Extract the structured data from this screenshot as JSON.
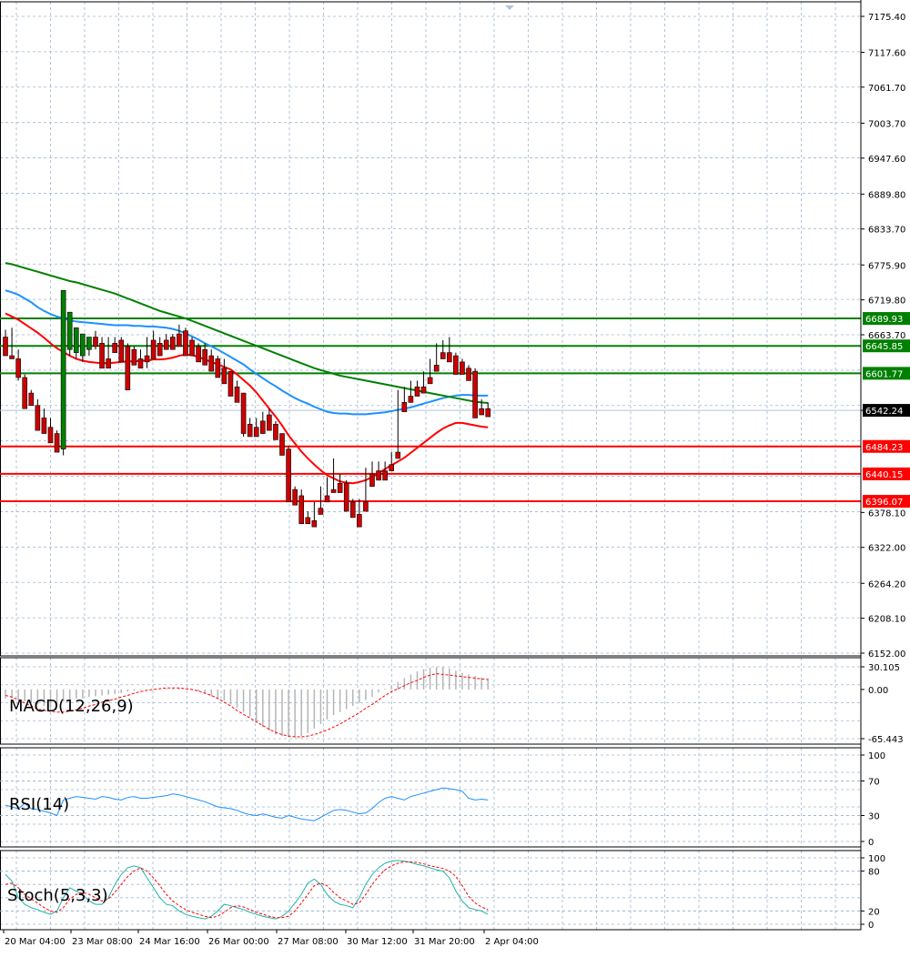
{
  "chart_data": [
    {
      "type": "candlestick",
      "panel": "price",
      "y_ticks": [
        "7175.40",
        "7117.60",
        "7061.70",
        "7003.70",
        "6947.60",
        "6889.80",
        "6833.70",
        "6775.90",
        "6719.80",
        "6663.70",
        "6542.24",
        "6378.10",
        "6322.00",
        "6264.20",
        "6208.10",
        "6152.00"
      ],
      "ylim": [
        6152.0,
        7175.4
      ],
      "grid": true,
      "current_price": "6542.24",
      "horizontal_levels": [
        {
          "value": 6689.93,
          "label": "6689.93",
          "color": "#008000"
        },
        {
          "value": 6645.85,
          "label": "6645.85",
          "color": "#008000"
        },
        {
          "value": 6601.77,
          "label": "6601.77",
          "color": "#008000"
        },
        {
          "value": 6484.23,
          "label": "6484.23",
          "color": "#ff0000"
        },
        {
          "value": 6440.15,
          "label": "6440.15",
          "color": "#ff0000"
        },
        {
          "value": 6396.07,
          "label": "6396.07",
          "color": "#ff0000"
        }
      ],
      "candles": [
        [
          6660,
          6672,
          6648,
          6630
        ],
        [
          6630,
          6675,
          6625,
          6625
        ],
        [
          6625,
          6640,
          6590,
          6595
        ],
        [
          6595,
          6600,
          6560,
          6545
        ],
        [
          6570,
          6575,
          6555,
          6550
        ],
        [
          6550,
          6560,
          6525,
          6510
        ],
        [
          6530,
          6545,
          6510,
          6505
        ],
        [
          6515,
          6530,
          6495,
          6490
        ],
        [
          6505,
          6510,
          6480,
          6475
        ],
        [
          6480,
          6640,
          6470,
          6735
        ],
        [
          6640,
          6650,
          6630,
          6700
        ],
        [
          6635,
          6645,
          6625,
          6675
        ],
        [
          6630,
          6650,
          6620,
          6665
        ],
        [
          6640,
          6660,
          6630,
          6660
        ],
        [
          6660,
          6670,
          6640,
          6645
        ],
        [
          6650,
          6660,
          6620,
          6610
        ],
        [
          6625,
          6660,
          6620,
          6610
        ],
        [
          6650,
          6660,
          6640,
          6635
        ],
        [
          6655,
          6660,
          6630,
          6620
        ],
        [
          6645,
          6650,
          6640,
          6575
        ],
        [
          6640,
          6645,
          6620,
          6615
        ],
        [
          6625,
          6640,
          6615,
          6610
        ],
        [
          6630,
          6660,
          6610,
          6620
        ],
        [
          6655,
          6670,
          6640,
          6625
        ],
        [
          6650,
          6660,
          6645,
          6630
        ],
        [
          6655,
          6665,
          6640,
          6640
        ],
        [
          6660,
          6665,
          6650,
          6640
        ],
        [
          6665,
          6680,
          6655,
          6645
        ],
        [
          6670,
          6675,
          6650,
          6630
        ],
        [
          6655,
          6660,
          6640,
          6630
        ],
        [
          6645,
          6650,
          6640,
          6620
        ],
        [
          6640,
          6650,
          6625,
          6615
        ],
        [
          6630,
          6640,
          6620,
          6605
        ],
        [
          6625,
          6630,
          6605,
          6595
        ],
        [
          6610,
          6625,
          6600,
          6585
        ],
        [
          6605,
          6600,
          6575,
          6565
        ],
        [
          6580,
          6590,
          6565,
          6555
        ],
        [
          6570,
          6570,
          6500,
          6505
        ],
        [
          6520,
          6530,
          6510,
          6500
        ],
        [
          6515,
          6530,
          6505,
          6500
        ],
        [
          6525,
          6540,
          6515,
          6505
        ],
        [
          6535,
          6545,
          6520,
          6510
        ],
        [
          6520,
          6525,
          6500,
          6495
        ],
        [
          6505,
          6505,
          6480,
          6470
        ],
        [
          6480,
          6485,
          6400,
          6395
        ],
        [
          6415,
          6420,
          6400,
          6390
        ],
        [
          6405,
          6415,
          6375,
          6360
        ],
        [
          6370,
          6380,
          6365,
          6360
        ],
        [
          6365,
          6395,
          6360,
          6355
        ],
        [
          6385,
          6420,
          6380,
          6375
        ],
        [
          6405,
          6435,
          6400,
          6395
        ],
        [
          6415,
          6465,
          6410,
          6410
        ],
        [
          6425,
          6440,
          6415,
          6410
        ],
        [
          6425,
          6430,
          6390,
          6380
        ],
        [
          6395,
          6400,
          6375,
          6370
        ],
        [
          6375,
          6400,
          6370,
          6355
        ],
        [
          6395,
          6450,
          6380,
          6380
        ],
        [
          6440,
          6460,
          6430,
          6420
        ],
        [
          6445,
          6460,
          6440,
          6430
        ],
        [
          6445,
          6460,
          6440,
          6430
        ],
        [
          6455,
          6475,
          6445,
          6445
        ],
        [
          6475,
          6575,
          6470,
          6465
        ],
        [
          6555,
          6580,
          6550,
          6540
        ],
        [
          6565,
          6590,
          6560,
          6555
        ],
        [
          6580,
          6590,
          6570,
          6565
        ],
        [
          6580,
          6605,
          6575,
          6570
        ],
        [
          6595,
          6625,
          6590,
          6585
        ],
        [
          6615,
          6650,
          6610,
          6605
        ],
        [
          6635,
          6655,
          6630,
          6625
        ],
        [
          6635,
          6660,
          6625,
          6620
        ],
        [
          6630,
          6635,
          6615,
          6600
        ],
        [
          6620,
          6625,
          6605,
          6600
        ],
        [
          6610,
          6615,
          6600,
          6590
        ],
        [
          6605,
          6610,
          6540,
          6530
        ],
        [
          6545,
          6560,
          6540,
          6535
        ],
        [
          6545,
          6555,
          6538,
          6532
        ]
      ],
      "moving_averages": [
        {
          "color": "#ff0000",
          "values": [
            6698,
            6693,
            6688,
            6681,
            6674,
            6667,
            6659,
            6650,
            6642,
            6636,
            6630,
            6625,
            6622,
            6620,
            6619,
            6618,
            6618,
            6619,
            6620,
            6621,
            6621,
            6622,
            6622,
            6624,
            6624,
            6625,
            6627,
            6630,
            6632,
            6631,
            6628,
            6624,
            6620,
            6616,
            6612,
            6608,
            6600,
            6591,
            6582,
            6571,
            6558,
            6545,
            6532,
            6518,
            6502,
            6489,
            6476,
            6465,
            6455,
            6446,
            6438,
            6433,
            6428,
            6426,
            6425,
            6427,
            6430,
            6435,
            6441,
            6448,
            6454,
            6460,
            6466,
            6474,
            6482,
            6490,
            6498,
            6506,
            6513,
            6518,
            6522,
            6522,
            6520,
            6518,
            6516,
            6515
          ]
        },
        {
          "color": "#1e90ff",
          "values": [
            6735,
            6732,
            6728,
            6722,
            6716,
            6708,
            6702,
            6697,
            6693,
            6690,
            6687,
            6685,
            6684,
            6683,
            6682,
            6681,
            6680,
            6679,
            6679,
            6679,
            6678,
            6678,
            6677,
            6677,
            6676,
            6675,
            6673,
            6670,
            6666,
            6661,
            6656,
            6650,
            6645,
            6640,
            6634,
            6628,
            6622,
            6616,
            6608,
            6601,
            6594,
            6587,
            6581,
            6574,
            6568,
            6562,
            6557,
            6553,
            6548,
            6544,
            6540,
            6538,
            6537,
            6537,
            6536,
            6536,
            6536,
            6537,
            6538,
            6539,
            6541,
            6543,
            6545,
            6547,
            6550,
            6553,
            6556,
            6559,
            6562,
            6564,
            6566,
            6567,
            6567,
            6566,
            6566,
            6566
          ]
        },
        {
          "color": "#008000",
          "values": [
            6779,
            6777,
            6774,
            6771,
            6768,
            6765,
            6762,
            6759,
            6756,
            6753,
            6750,
            6748,
            6745,
            6742,
            6739,
            6736,
            6733,
            6730,
            6726,
            6722,
            6718,
            6714,
            6710,
            6706,
            6702,
            6699,
            6696,
            6693,
            6690,
            6686,
            6682,
            6678,
            6674,
            6670,
            6666,
            6662,
            6658,
            6654,
            6650,
            6646,
            6642,
            6638,
            6634,
            6630,
            6626,
            6622,
            6618,
            6614,
            6610,
            6607,
            6604,
            6601,
            6598,
            6596,
            6594,
            6592,
            6590,
            6588,
            6586,
            6584,
            6582,
            6580,
            6578,
            6576,
            6574,
            6572,
            6570,
            6568,
            6566,
            6564,
            6562,
            6560,
            6558,
            6556,
            6555,
            6554
          ]
        }
      ],
      "x_tick_labels": [
        "20 Mar 04:00",
        "23 Mar 08:00",
        "24 Mar 16:00",
        "26 Mar 00:00",
        "27 Mar 08:00",
        "30 Mar 12:00",
        "31 Mar 20:00",
        "2 Apr 04:00"
      ]
    },
    {
      "type": "bar",
      "panel": "macd",
      "title": "MACD(12,26,9)",
      "y_ticks": [
        "30.105",
        "0.00",
        "-65.443"
      ],
      "ylim": [
        -65.443,
        30.105
      ],
      "histogram": [
        -12,
        -12,
        -14,
        -16,
        -18,
        -20,
        -22,
        -24,
        -22,
        -16,
        -14,
        -12,
        -12,
        -10,
        -9,
        -8,
        -7,
        -6,
        -5,
        -3,
        -2,
        -1,
        0,
        1,
        1,
        1,
        1,
        2,
        1,
        -1,
        -3,
        -6,
        -9,
        -12,
        -15,
        -20,
        -24,
        -30,
        -36,
        -44,
        -50,
        -55,
        -60,
        -62,
        -64,
        -64,
        -62,
        -58,
        -52,
        -46,
        -40,
        -34,
        -30,
        -26,
        -22,
        -18,
        -14,
        -10,
        -4,
        1,
        5,
        10,
        15,
        20,
        24,
        27,
        29,
        30,
        30,
        28,
        25,
        22,
        20,
        18,
        16,
        15
      ],
      "signal": [
        -8,
        -10,
        -14,
        -18,
        -22,
        -26,
        -28,
        -29,
        -30,
        -30,
        -29,
        -27,
        -25,
        -22,
        -20,
        -17,
        -15,
        -13,
        -10,
        -8,
        -5,
        -3,
        -1,
        0,
        1,
        2,
        2,
        2,
        1,
        0,
        -2,
        -5,
        -8,
        -12,
        -17,
        -22,
        -28,
        -33,
        -38,
        -43,
        -48,
        -53,
        -57,
        -60,
        -62,
        -63,
        -63,
        -62,
        -60,
        -57,
        -54,
        -50,
        -46,
        -41,
        -36,
        -31,
        -25,
        -20,
        -14,
        -8,
        -3,
        1,
        5,
        9,
        12,
        16,
        19,
        21,
        20,
        19,
        18,
        17,
        16,
        15,
        14,
        13
      ]
    },
    {
      "type": "line",
      "panel": "rsi",
      "title": "RSI(14)",
      "y_ticks": [
        "100",
        "70",
        "30",
        "0"
      ],
      "ylim": [
        0,
        100
      ],
      "values": [
        42,
        40,
        38,
        44,
        38,
        37,
        35,
        33,
        30,
        48,
        50,
        52,
        51,
        50,
        49,
        52,
        51,
        49,
        48,
        51,
        52,
        50,
        50,
        51,
        52,
        53,
        55,
        54,
        52,
        50,
        48,
        46,
        43,
        40,
        39,
        38,
        36,
        33,
        31,
        30,
        32,
        30,
        28,
        27,
        30,
        28,
        26,
        25,
        24,
        28,
        32,
        36,
        37,
        36,
        34,
        32,
        33,
        38,
        45,
        50,
        52,
        50,
        48,
        52,
        54,
        56,
        58,
        60,
        62,
        61,
        60,
        58,
        50,
        48,
        49,
        48
      ]
    },
    {
      "type": "line",
      "panel": "stoch",
      "title": "Stoch(5,3,3)",
      "y_ticks": [
        "100",
        "80",
        "20",
        "0"
      ],
      "ylim": [
        0,
        100
      ],
      "series": [
        {
          "values": [
            75,
            65,
            40,
            30,
            25,
            22,
            18,
            15,
            20,
            40,
            55,
            50,
            45,
            35,
            30,
            30,
            40,
            60,
            75,
            85,
            88,
            85,
            70,
            55,
            40,
            30,
            28,
            20,
            15,
            12,
            10,
            8,
            12,
            20,
            30,
            28,
            25,
            22,
            18,
            15,
            12,
            10,
            8,
            12,
            20,
            32,
            45,
            62,
            68,
            60,
            45,
            35,
            30,
            28,
            25,
            40,
            60,
            75,
            85,
            92,
            95,
            96,
            95,
            93,
            90,
            88,
            85,
            82,
            80,
            70,
            50,
            35,
            25,
            22,
            20,
            15
          ]
        },
        {
          "values": [
            60,
            62,
            55,
            45,
            38,
            32,
            25,
            20,
            18,
            25,
            38,
            45,
            48,
            45,
            40,
            35,
            38,
            48,
            60,
            72,
            80,
            85,
            80,
            70,
            58,
            45,
            35,
            28,
            22,
            18,
            15,
            12,
            10,
            12,
            18,
            25,
            28,
            26,
            22,
            18,
            15,
            12,
            10,
            10,
            12,
            20,
            32,
            45,
            58,
            62,
            58,
            48,
            40,
            35,
            30,
            32,
            45,
            60,
            72,
            82,
            88,
            92,
            94,
            94,
            93,
            91,
            88,
            86,
            84,
            80,
            72,
            58,
            42,
            32,
            26,
            22
          ]
        }
      ]
    }
  ]
}
